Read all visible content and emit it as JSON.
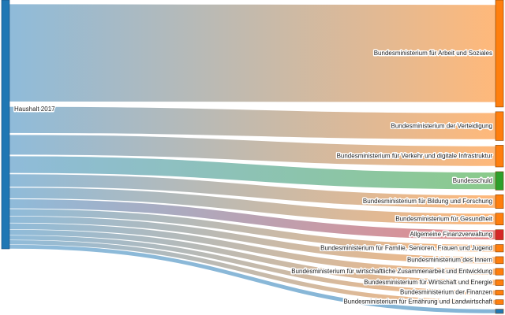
{
  "chart_data": {
    "type": "sankey",
    "source": {
      "name": "Haushalt 2017",
      "color": "#1f77b4"
    },
    "targets": [
      {
        "name": "Bundesministerium für Arbeit und Soziales",
        "value": 137.58,
        "color": "#ff7f0e"
      },
      {
        "name": "Bundesministerium der Verteidigung",
        "value": 37.0,
        "color": "#ff7f0e"
      },
      {
        "name": "Bundesministerium für Verkehr und digitale Infrastruktur",
        "value": 27.9,
        "color": "#ff7f0e"
      },
      {
        "name": "Bundesschuld",
        "value": 23.6,
        "color": "#2ca02c"
      },
      {
        "name": "Bundesministerium für Bildung und Forschung",
        "value": 17.6,
        "color": "#ff7f0e"
      },
      {
        "name": "Bundesministerium für Gesundheit",
        "value": 15.2,
        "color": "#ff7f0e"
      },
      {
        "name": "Allgemeine Finanzverwaltung",
        "value": 13.0,
        "color": "#d62728"
      },
      {
        "name": "Bundesministerium für Familie, Senioren, Frauen und Jugend",
        "value": 9.5,
        "color": "#ff7f0e"
      },
      {
        "name": "Bundesministerium des Innern",
        "value": 9.0,
        "color": "#ff7f0e"
      },
      {
        "name": "Bundesministerium für wirtschaftliche Zusammenarbeit und Entwicklung",
        "value": 8.5,
        "color": "#ff7f0e"
      },
      {
        "name": "Bundesministerium für Wirtschaft und Energie",
        "value": 7.4,
        "color": "#ff7f0e"
      },
      {
        "name": "Bundesministerium der Finanzen",
        "value": 6.2,
        "color": "#ff7f0e"
      },
      {
        "name": "Bundesministerium für Ernährung und Landwirtschaft",
        "value": 6.0,
        "color": "#ff7f0e"
      },
      {
        "name": "",
        "value": 5.5,
        "color": "#1f77b4"
      }
    ]
  }
}
